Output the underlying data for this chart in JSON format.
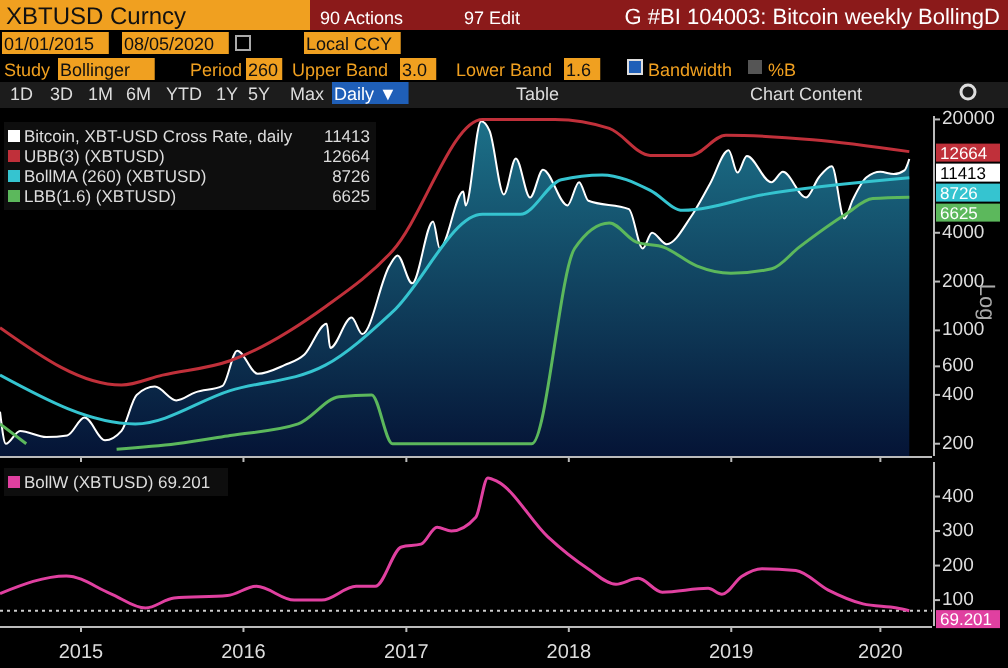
{
  "chart_data": [
    {
      "type": "line",
      "title": "G #BI 104003: Bitcoin weekly BollingD",
      "ylabel": "Log",
      "log": true,
      "legend": "top left",
      "tick_labels": "y",
      "grid": false,
      "annotations": [
        "XBTUSD Curncy",
        "90 Actions",
        "97 Edit",
        "01/01/2015",
        "08/05/2020",
        "Local CCY",
        "Study",
        "Bollinger",
        "Period",
        "260",
        "Upper Band",
        "3.0",
        "Lower Band",
        "1.6",
        "Bandwidth",
        "%B",
        "1D",
        "3D",
        "1M",
        "6M",
        "YTD",
        "1Y",
        "5Y",
        "Max",
        "Daily ▼",
        "Table",
        "Chart Content"
      ],
      "xlim": [
        "2015-01-01",
        "2020-09-25"
      ],
      "xticks": [
        {
          "value": "2015-07-02",
          "label": null
        },
        {
          "value": "2016-07-01",
          "label": null
        },
        {
          "value": "2017-07-02",
          "label": null
        },
        {
          "value": "2018-07-02",
          "label": null
        },
        {
          "value": "2019-07-02",
          "label": null
        },
        {
          "value": "2020-06-01",
          "label": null
        }
      ],
      "ylim": [
        168,
        21000
      ],
      "yticks": [
        200,
        400,
        600,
        1000,
        2000,
        4000,
        20000
      ],
      "series": [
        {
          "name": "Bitcoin, XBT-USD Cross Rate, daily",
          "type": "area",
          "color": "#ffffff",
          "x": [
            "2015-01-01",
            "2015-01-14",
            "2015-02-15",
            "2015-04-15",
            "2015-06-01",
            "2015-07-10",
            "2015-08-25",
            "2015-10-01",
            "2015-11-04",
            "2015-12-15",
            "2016-02-01",
            "2016-03-15",
            "2016-05-15",
            "2016-06-17",
            "2016-08-02",
            "2016-10-01",
            "2016-11-15",
            "2017-01-04",
            "2017-01-12",
            "2017-03-01",
            "2017-03-25",
            "2017-05-25",
            "2017-06-12",
            "2017-07-15",
            "2017-08-31",
            "2017-09-15",
            "2017-11-07",
            "2017-11-12",
            "2017-12-17",
            "2018-01-05",
            "2018-02-06",
            "2018-03-05",
            "2018-04-06",
            "2018-05-05",
            "2018-06-29",
            "2018-07-25",
            "2018-08-15",
            "2018-11-14",
            "2018-12-15",
            "2019-01-05",
            "2019-02-07",
            "2019-04-02",
            "2019-05-15",
            "2019-06-26",
            "2019-07-16",
            "2019-08-06",
            "2019-09-30",
            "2019-10-26",
            "2019-12-17",
            "2020-01-15",
            "2020-02-13",
            "2020-03-12",
            "2020-03-31",
            "2020-05-01",
            "2020-06-01",
            "2020-07-01",
            "2020-07-25",
            "2020-08-05"
          ],
          "values": [
            315,
            200,
            240,
            220,
            225,
            290,
            210,
            240,
            400,
            450,
            370,
            415,
            455,
            750,
            540,
            610,
            710,
            1100,
            780,
            1200,
            950,
            2500,
            2900,
            1950,
            4700,
            3200,
            7200,
            5900,
            19500,
            17000,
            6900,
            11500,
            6600,
            9800,
            5900,
            8200,
            6300,
            5600,
            3200,
            4000,
            3400,
            5000,
            8000,
            12900,
            9400,
            11900,
            8200,
            9500,
            6600,
            8800,
            10300,
            4900,
            6400,
            8800,
            9500,
            9200,
            9700,
            11413
          ],
          "value_labels": [
            null,
            null,
            null,
            null,
            null,
            null,
            null,
            null,
            null,
            null,
            null,
            null,
            null,
            null,
            null,
            null,
            null,
            null,
            null,
            null,
            null,
            null,
            null,
            null,
            null,
            null,
            null,
            null,
            null,
            null,
            null,
            null,
            null,
            null,
            null,
            null,
            null,
            null,
            null,
            null,
            null,
            null,
            null,
            null,
            null,
            null,
            null,
            null,
            null,
            null,
            null,
            null,
            null,
            null,
            null,
            null,
            null,
            "11413"
          ]
        },
        {
          "name": "UBB(3) (XBTUSD)",
          "color": "#c0303a",
          "x": [
            "2015-01-01",
            "2015-10-01",
            "2016-01-01",
            "2016-06-01",
            "2017-01-01",
            "2017-06-01",
            "2017-12-20",
            "2018-06-01",
            "2018-10-01",
            "2019-01-01",
            "2019-04-01",
            "2019-06-20",
            "2020-01-01",
            "2020-08-05"
          ],
          "values": [
            1040,
            460,
            530,
            650,
            1400,
            3100,
            20000,
            20000,
            17600,
            12000,
            12000,
            16000,
            15000,
            12664
          ],
          "value_labels": [
            null,
            null,
            null,
            null,
            null,
            null,
            null,
            null,
            null,
            null,
            null,
            null,
            null,
            "12664"
          ]
        },
        {
          "name": "BollMA (260) (XBTUSD)",
          "color": "#35c4d0",
          "x": [
            "2015-01-01",
            "2015-11-01",
            "2016-06-01",
            "2017-01-01",
            "2017-06-01",
            "2017-12-20",
            "2018-03-15",
            "2018-06-15",
            "2018-09-15",
            "2019-01-01",
            "2019-03-15",
            "2019-09-15",
            "2020-08-05"
          ],
          "values": [
            530,
            265,
            425,
            610,
            1300,
            5200,
            5200,
            8500,
            9100,
            7300,
            5500,
            6900,
            8726
          ],
          "value_labels": [
            null,
            null,
            null,
            null,
            null,
            null,
            null,
            null,
            null,
            null,
            null,
            null,
            "8726"
          ]
        },
        {
          "name": "LBB(1.6) (XBTUSD)",
          "color": "#5cb85c",
          "x": [
            "2015-01-01",
            "2015-03-01",
            "2015-03-20",
            "2015-08-25",
            "2015-09-20",
            "2016-02-01",
            "2016-06-01",
            "2016-11-01",
            "2017-02-01",
            "2017-04-15",
            "2017-06-01",
            "2018-04-10",
            "2018-07-15",
            "2018-10-01",
            "2018-12-01",
            "2019-02-01",
            "2019-04-15",
            "2019-07-01",
            "2019-10-01",
            "2019-12-01",
            "2020-03-15",
            "2020-05-15",
            "2020-08-05"
          ],
          "values": [
            265,
            200,
            null,
            null,
            185,
            200,
            225,
            265,
            390,
            400,
            200,
            200,
            3200,
            4600,
            3500,
            3250,
            2500,
            2250,
            2400,
            3250,
            5200,
            6500,
            6625
          ],
          "value_labels": [
            null,
            null,
            null,
            null,
            null,
            null,
            null,
            null,
            null,
            null,
            null,
            null,
            null,
            null,
            null,
            null,
            null,
            null,
            null,
            null,
            null,
            null,
            "6625"
          ]
        }
      ]
    },
    {
      "type": "line",
      "legend": "top left",
      "grid": false,
      "xlim": [
        "2015-01-01",
        "2020-09-25"
      ],
      "xticks": [
        {
          "value": "2015-07-02",
          "label": "2015"
        },
        {
          "value": "2016-07-01",
          "label": "2016"
        },
        {
          "value": "2017-07-02",
          "label": "2017"
        },
        {
          "value": "2018-07-02",
          "label": "2018"
        },
        {
          "value": "2019-07-02",
          "label": "2019"
        },
        {
          "value": "2020-06-01",
          "label": "2020"
        }
      ],
      "ylim": [
        25,
        500
      ],
      "yticks": [
        100,
        200,
        300,
        400
      ],
      "ref_lines": [
        {
          "axis": "y",
          "value": 69.201,
          "label": "69.201",
          "color": "#cccccc",
          "line_style": "dotted"
        }
      ],
      "series": [
        {
          "name": "BollW (XBTUSD) 69.201",
          "color": "#e040a0",
          "x": [
            "2015-01-01",
            "2015-05-30",
            "2015-09-06",
            "2015-11-24",
            "2016-01-27",
            "2016-05-26",
            "2016-07-30",
            "2016-10-23",
            "2016-12-24",
            "2017-03-11",
            "2017-04-23",
            "2017-06-21",
            "2017-08-04",
            "2017-09-09",
            "2017-10-11",
            "2017-12-05",
            "2018-01-01",
            "2018-01-23",
            "2018-05-16",
            "2018-08-14",
            "2018-10-16",
            "2018-12-05",
            "2019-01-28",
            "2019-05-11",
            "2019-06-11",
            "2019-07-26",
            "2019-09-09",
            "2019-11-24",
            "2020-02-05",
            "2020-04-23",
            "2020-07-08",
            "2020-08-05"
          ],
          "values": [
            119,
            170,
            119,
            77,
            106,
            113,
            140,
            100,
            100,
            140,
            140,
            254,
            262,
            311,
            300,
            340,
            454,
            443,
            283,
            191,
            146,
            163,
            123,
            134,
            117,
            169,
            191,
            186,
            129,
            89,
            77,
            69
          ]
        }
      ]
    }
  ]
}
